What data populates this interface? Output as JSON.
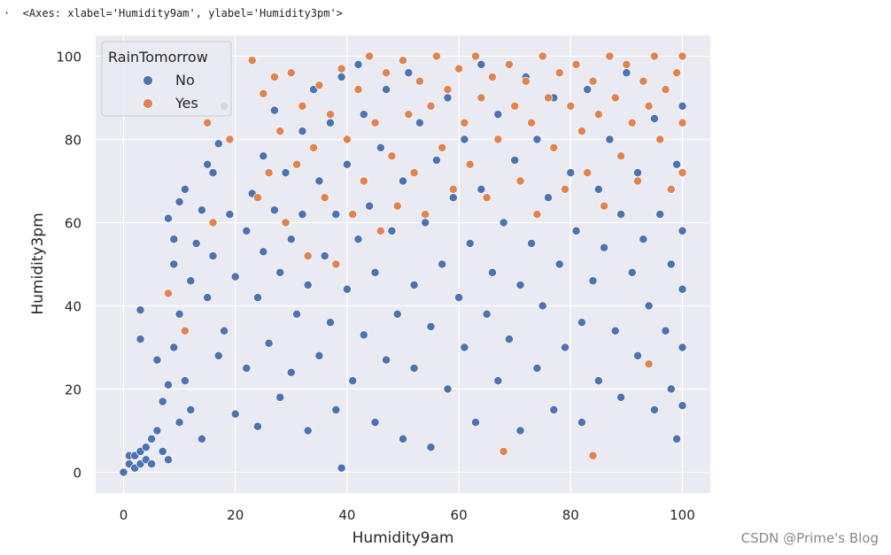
{
  "output_header": "·  <Axes: xlabel='Humidity9am', ylabel='Humidity3pm'>",
  "watermark": "CSDN @Prime's Blog",
  "chart_data": {
    "type": "scatter",
    "title": "",
    "xlabel": "Humidity9am",
    "ylabel": "Humidity3pm",
    "xlim": [
      -5,
      105
    ],
    "ylim": [
      -5,
      105
    ],
    "xticks": [
      0,
      20,
      40,
      60,
      80,
      100
    ],
    "yticks": [
      0,
      20,
      40,
      60,
      80,
      100
    ],
    "grid": true,
    "legend": {
      "title": "RainTomorrow",
      "placement": "top-left"
    },
    "colors": {
      "No": "#4c72b0",
      "Yes": "#dd8452",
      "background": "#eaeaf2"
    },
    "series": [
      {
        "name": "No",
        "color": "#4c72b0",
        "points": [
          [
            0,
            0
          ],
          [
            1,
            2
          ],
          [
            1,
            4
          ],
          [
            2,
            1
          ],
          [
            2,
            4
          ],
          [
            3,
            2
          ],
          [
            3,
            5
          ],
          [
            4,
            3
          ],
          [
            4,
            6
          ],
          [
            3,
            39
          ],
          [
            3,
            32
          ],
          [
            5,
            8
          ],
          [
            5,
            2
          ],
          [
            6,
            10
          ],
          [
            6,
            27
          ],
          [
            7,
            5
          ],
          [
            7,
            17
          ],
          [
            8,
            61
          ],
          [
            8,
            3
          ],
          [
            8,
            21
          ],
          [
            9,
            56
          ],
          [
            9,
            50
          ],
          [
            9,
            30
          ],
          [
            10,
            65
          ],
          [
            10,
            38
          ],
          [
            10,
            12
          ],
          [
            11,
            68
          ],
          [
            11,
            22
          ],
          [
            12,
            46
          ],
          [
            12,
            15
          ],
          [
            13,
            55
          ],
          [
            14,
            63
          ],
          [
            14,
            8
          ],
          [
            15,
            74
          ],
          [
            15,
            42
          ],
          [
            16,
            72
          ],
          [
            16,
            52
          ],
          [
            17,
            79
          ],
          [
            17,
            28
          ],
          [
            18,
            88
          ],
          [
            18,
            34
          ],
          [
            19,
            62
          ],
          [
            20,
            47
          ],
          [
            20,
            14
          ],
          [
            22,
            58
          ],
          [
            22,
            25
          ],
          [
            23,
            67
          ],
          [
            24,
            42
          ],
          [
            24,
            11
          ],
          [
            25,
            76
          ],
          [
            25,
            53
          ],
          [
            26,
            31
          ],
          [
            27,
            87
          ],
          [
            27,
            63
          ],
          [
            28,
            48
          ],
          [
            28,
            18
          ],
          [
            29,
            72
          ],
          [
            30,
            56
          ],
          [
            30,
            24
          ],
          [
            31,
            38
          ],
          [
            32,
            82
          ],
          [
            32,
            62
          ],
          [
            33,
            45
          ],
          [
            33,
            10
          ],
          [
            34,
            92
          ],
          [
            35,
            70
          ],
          [
            35,
            28
          ],
          [
            36,
            52
          ],
          [
            37,
            84
          ],
          [
            37,
            36
          ],
          [
            38,
            62
          ],
          [
            38,
            15
          ],
          [
            39,
            95
          ],
          [
            39,
            1
          ],
          [
            40,
            44
          ],
          [
            40,
            74
          ],
          [
            41,
            22
          ],
          [
            42,
            98
          ],
          [
            42,
            56
          ],
          [
            43,
            33
          ],
          [
            43,
            86
          ],
          [
            44,
            64
          ],
          [
            45,
            12
          ],
          [
            45,
            48
          ],
          [
            46,
            78
          ],
          [
            47,
            27
          ],
          [
            47,
            92
          ],
          [
            48,
            58
          ],
          [
            49,
            38
          ],
          [
            50,
            70
          ],
          [
            50,
            8
          ],
          [
            51,
            96
          ],
          [
            52,
            45
          ],
          [
            52,
            25
          ],
          [
            53,
            84
          ],
          [
            54,
            60
          ],
          [
            55,
            35
          ],
          [
            55,
            6
          ],
          [
            56,
            75
          ],
          [
            57,
            50
          ],
          [
            58,
            90
          ],
          [
            58,
            20
          ],
          [
            59,
            66
          ],
          [
            60,
            42
          ],
          [
            61,
            30
          ],
          [
            61,
            80
          ],
          [
            62,
            55
          ],
          [
            63,
            12
          ],
          [
            64,
            98
          ],
          [
            64,
            68
          ],
          [
            65,
            38
          ],
          [
            66,
            48
          ],
          [
            67,
            22
          ],
          [
            67,
            86
          ],
          [
            68,
            60
          ],
          [
            69,
            32
          ],
          [
            70,
            75
          ],
          [
            71,
            45
          ],
          [
            71,
            10
          ],
          [
            72,
            95
          ],
          [
            73,
            55
          ],
          [
            74,
            25
          ],
          [
            74,
            80
          ],
          [
            75,
            40
          ],
          [
            76,
            66
          ],
          [
            77,
            15
          ],
          [
            77,
            90
          ],
          [
            78,
            50
          ],
          [
            79,
            30
          ],
          [
            80,
            72
          ],
          [
            81,
            58
          ],
          [
            82,
            36
          ],
          [
            82,
            12
          ],
          [
            83,
            92
          ],
          [
            84,
            46
          ],
          [
            85,
            68
          ],
          [
            85,
            22
          ],
          [
            86,
            54
          ],
          [
            87,
            80
          ],
          [
            88,
            34
          ],
          [
            89,
            62
          ],
          [
            89,
            18
          ],
          [
            90,
            96
          ],
          [
            91,
            48
          ],
          [
            92,
            72
          ],
          [
            92,
            28
          ],
          [
            93,
            56
          ],
          [
            94,
            40
          ],
          [
            95,
            85
          ],
          [
            95,
            15
          ],
          [
            96,
            62
          ],
          [
            97,
            34
          ],
          [
            97,
            92
          ],
          [
            98,
            50
          ],
          [
            98,
            20
          ],
          [
            99,
            8
          ],
          [
            99,
            74
          ],
          [
            100,
            30
          ],
          [
            100,
            58
          ],
          [
            100,
            88
          ],
          [
            100,
            16
          ],
          [
            100,
            44
          ]
        ]
      },
      {
        "name": "Yes",
        "color": "#dd8452",
        "points": [
          [
            8,
            43
          ],
          [
            11,
            34
          ],
          [
            15,
            84
          ],
          [
            16,
            60
          ],
          [
            19,
            80
          ],
          [
            23,
            99
          ],
          [
            24,
            66
          ],
          [
            25,
            91
          ],
          [
            26,
            72
          ],
          [
            27,
            95
          ],
          [
            28,
            82
          ],
          [
            29,
            60
          ],
          [
            30,
            96
          ],
          [
            31,
            74
          ],
          [
            32,
            88
          ],
          [
            33,
            52
          ],
          [
            34,
            78
          ],
          [
            35,
            93
          ],
          [
            36,
            66
          ],
          [
            37,
            86
          ],
          [
            38,
            50
          ],
          [
            39,
            97
          ],
          [
            40,
            80
          ],
          [
            41,
            62
          ],
          [
            42,
            92
          ],
          [
            43,
            70
          ],
          [
            44,
            100
          ],
          [
            45,
            84
          ],
          [
            46,
            58
          ],
          [
            47,
            96
          ],
          [
            48,
            76
          ],
          [
            49,
            64
          ],
          [
            50,
            99
          ],
          [
            51,
            86
          ],
          [
            52,
            72
          ],
          [
            53,
            94
          ],
          [
            54,
            62
          ],
          [
            55,
            88
          ],
          [
            56,
            100
          ],
          [
            57,
            78
          ],
          [
            58,
            92
          ],
          [
            59,
            68
          ],
          [
            60,
            97
          ],
          [
            61,
            84
          ],
          [
            62,
            74
          ],
          [
            63,
            100
          ],
          [
            64,
            90
          ],
          [
            65,
            66
          ],
          [
            66,
            95
          ],
          [
            67,
            80
          ],
          [
            68,
            5
          ],
          [
            69,
            98
          ],
          [
            70,
            88
          ],
          [
            71,
            70
          ],
          [
            72,
            94
          ],
          [
            73,
            84
          ],
          [
            74,
            62
          ],
          [
            75,
            100
          ],
          [
            76,
            90
          ],
          [
            77,
            78
          ],
          [
            78,
            96
          ],
          [
            79,
            68
          ],
          [
            80,
            88
          ],
          [
            81,
            98
          ],
          [
            82,
            82
          ],
          [
            83,
            72
          ],
          [
            84,
            4
          ],
          [
            84,
            94
          ],
          [
            85,
            86
          ],
          [
            86,
            64
          ],
          [
            87,
            100
          ],
          [
            88,
            90
          ],
          [
            89,
            76
          ],
          [
            90,
            98
          ],
          [
            91,
            84
          ],
          [
            92,
            70
          ],
          [
            93,
            94
          ],
          [
            94,
            26
          ],
          [
            94,
            88
          ],
          [
            95,
            100
          ],
          [
            96,
            80
          ],
          [
            97,
            92
          ],
          [
            98,
            68
          ],
          [
            99,
            96
          ],
          [
            100,
            84
          ],
          [
            100,
            100
          ],
          [
            100,
            72
          ]
        ]
      }
    ]
  }
}
